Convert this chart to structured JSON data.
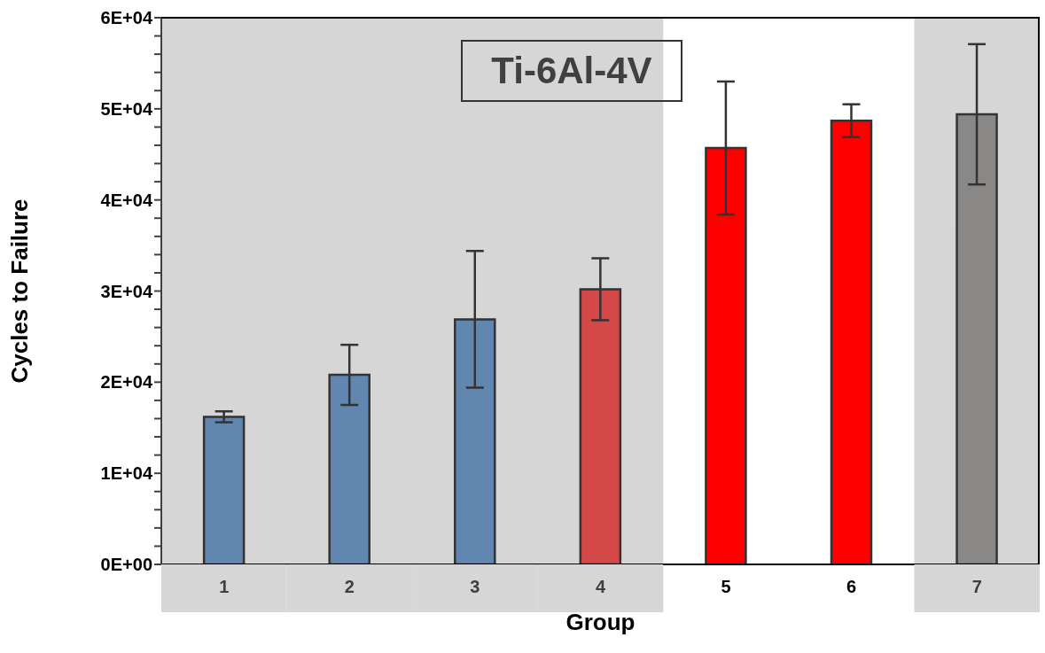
{
  "chart_data": {
    "type": "bar",
    "title": "Ti-6Al-4V",
    "xlabel": "Group",
    "ylabel": "Cycles to Failure",
    "categories": [
      "1",
      "2",
      "3",
      "4",
      "5",
      "6",
      "7"
    ],
    "values": [
      16200,
      20800,
      26900,
      30200,
      45700,
      48700,
      49400
    ],
    "errors": [
      600,
      3300,
      7500,
      3400,
      7300,
      1800,
      7700
    ],
    "colors": [
      "#6187b0",
      "#6187b0",
      "#6187b0",
      "#d44848",
      "#ff0000",
      "#ff0000",
      "#898886"
    ],
    "ylim": [
      0,
      60000
    ],
    "yticks": [
      {
        "value": 0,
        "label": "0E+00"
      },
      {
        "value": 2000,
        "label": null
      },
      {
        "value": 4000,
        "label": null
      },
      {
        "value": 6000,
        "label": null
      },
      {
        "value": 8000,
        "label": null
      },
      {
        "value": 10000,
        "label": "1E+04"
      },
      {
        "value": 12000,
        "label": null
      },
      {
        "value": 14000,
        "label": null
      },
      {
        "value": 16000,
        "label": null
      },
      {
        "value": 18000,
        "label": null
      },
      {
        "value": 20000,
        "label": "2E+04"
      },
      {
        "value": 22000,
        "label": null
      },
      {
        "value": 24000,
        "label": null
      },
      {
        "value": 26000,
        "label": null
      },
      {
        "value": 28000,
        "label": null
      },
      {
        "value": 30000,
        "label": "3E+04"
      },
      {
        "value": 32000,
        "label": null
      },
      {
        "value": 34000,
        "label": null
      },
      {
        "value": 36000,
        "label": null
      },
      {
        "value": 38000,
        "label": null
      },
      {
        "value": 40000,
        "label": "4E+04"
      },
      {
        "value": 42000,
        "label": null
      },
      {
        "value": 44000,
        "label": null
      },
      {
        "value": 46000,
        "label": null
      },
      {
        "value": 48000,
        "label": null
      },
      {
        "value": 50000,
        "label": "5E+04"
      },
      {
        "value": 52000,
        "label": null
      },
      {
        "value": 54000,
        "label": null
      },
      {
        "value": 56000,
        "label": null
      },
      {
        "value": 58000,
        "label": null
      },
      {
        "value": 60000,
        "label": "6E+04"
      }
    ],
    "bands": [
      {
        "axis": "x",
        "from": "1",
        "to": "4",
        "color": "#d6d6d6"
      },
      {
        "axis": "x",
        "from": "7",
        "to": "7",
        "color": "#d6d6d6"
      }
    ],
    "grid": false,
    "legend": false
  }
}
